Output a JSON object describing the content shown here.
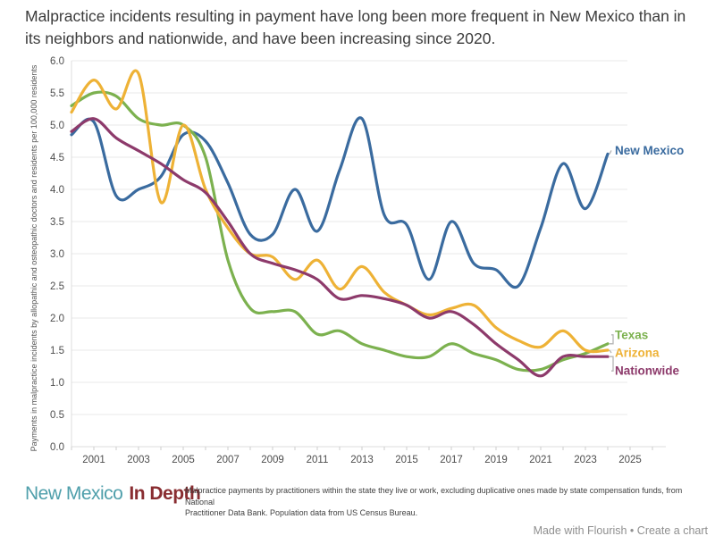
{
  "title": "Malpractice incidents resulting in payment have long been more frequent in New Mexico than in its neighbors and nationwide, and have been increasing since 2020.",
  "chart_data": {
    "type": "line",
    "x": [
      2000,
      2001,
      2002,
      2003,
      2004,
      2005,
      2006,
      2007,
      2008,
      2009,
      2010,
      2011,
      2012,
      2013,
      2014,
      2015,
      2016,
      2017,
      2018,
      2019,
      2020,
      2021,
      2022,
      2023,
      2024
    ],
    "series": [
      {
        "name": "New Mexico",
        "color": "#3a6b9f",
        "values": [
          4.85,
          5.05,
          3.9,
          4.0,
          4.2,
          4.85,
          4.75,
          4.1,
          3.3,
          3.3,
          4.0,
          3.35,
          4.3,
          5.1,
          3.6,
          3.45,
          2.6,
          3.5,
          2.85,
          2.75,
          2.5,
          3.4,
          4.4,
          3.7,
          4.55
        ]
      },
      {
        "name": "Texas",
        "color": "#7cb14f",
        "values": [
          5.3,
          5.5,
          5.45,
          5.1,
          5.0,
          5.0,
          4.5,
          2.9,
          2.15,
          2.1,
          2.1,
          1.75,
          1.8,
          1.6,
          1.5,
          1.4,
          1.4,
          1.6,
          1.45,
          1.35,
          1.2,
          1.2,
          1.35,
          1.45,
          1.6
        ]
      },
      {
        "name": "Arizona",
        "color": "#eeb236",
        "values": [
          5.2,
          5.7,
          5.25,
          5.8,
          3.8,
          5.0,
          4.0,
          3.4,
          3.0,
          2.95,
          2.6,
          2.9,
          2.45,
          2.8,
          2.4,
          2.2,
          2.05,
          2.15,
          2.2,
          1.85,
          1.65,
          1.55,
          1.8,
          1.5,
          1.5
        ]
      },
      {
        "name": "Nationwide",
        "color": "#8d3a6b",
        "values": [
          4.9,
          5.1,
          4.8,
          4.6,
          4.4,
          4.15,
          3.95,
          3.5,
          3.0,
          2.85,
          2.75,
          2.6,
          2.3,
          2.35,
          2.3,
          2.2,
          2.0,
          2.1,
          1.9,
          1.6,
          1.35,
          1.1,
          1.4,
          1.4,
          1.4
        ]
      }
    ],
    "ylabel": "Payments in malpractice incidents by allopathic and osteopathic doctors and residents  per 100,000 residents",
    "ylim": [
      0,
      6
    ],
    "y_ticks": [
      0.0,
      0.5,
      1.0,
      1.5,
      2.0,
      2.5,
      3.0,
      3.5,
      4.0,
      4.5,
      5.0,
      5.5,
      6.0
    ],
    "x_ticks": [
      2001,
      2003,
      2005,
      2007,
      2009,
      2011,
      2013,
      2015,
      2017,
      2019,
      2021,
      2023,
      2025
    ],
    "grid": "horizontal",
    "legend_position": "labels-at-line-ends-right"
  },
  "footer": {
    "logo_part1": "New Mexico",
    "logo_part2": "In Depth",
    "source_line1": "Malpractice payments by practitioners within the state they live or work, excluding duplicative ones made by state compensation funds, from National",
    "source_line2": "Practitioner Data Bank. Population data from US Census Bureau.",
    "attribution": "Made with Flourish • Create a chart"
  }
}
